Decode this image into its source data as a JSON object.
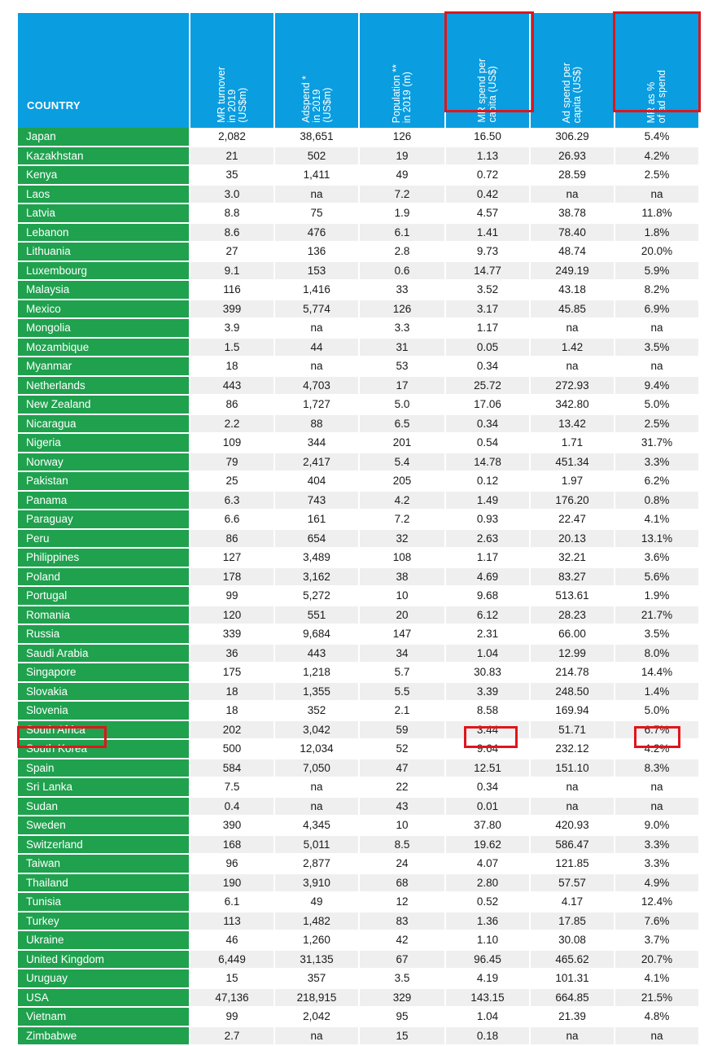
{
  "header": {
    "country": "COUNTRY",
    "columns": [
      "MR turnover\nin 2019\n(US$m)",
      "Adspend *\nin 2019\n(US$m)",
      "Population **\nin 2019 (m)",
      "MR spend per\ncapita (US$)",
      "Ad spend per\ncapita (US$)",
      "MR as %\nof ad spend"
    ]
  },
  "rows": [
    [
      "Japan",
      "2,082",
      "38,651",
      "126",
      "16.50",
      "306.29",
      "5.4%"
    ],
    [
      "Kazakhstan",
      "21",
      "502",
      "19",
      "1.13",
      "26.93",
      "4.2%"
    ],
    [
      "Kenya",
      "35",
      "1,411",
      "49",
      "0.72",
      "28.59",
      "2.5%"
    ],
    [
      "Laos",
      "3.0",
      "na",
      "7.2",
      "0.42",
      "na",
      "na"
    ],
    [
      "Latvia",
      "8.8",
      "75",
      "1.9",
      "4.57",
      "38.78",
      "11.8%"
    ],
    [
      "Lebanon",
      "8.6",
      "476",
      "6.1",
      "1.41",
      "78.40",
      "1.8%"
    ],
    [
      "Lithuania",
      "27",
      "136",
      "2.8",
      "9.73",
      "48.74",
      "20.0%"
    ],
    [
      "Luxembourg",
      "9.1",
      "153",
      "0.6",
      "14.77",
      "249.19",
      "5.9%"
    ],
    [
      "Malaysia",
      "116",
      "1,416",
      "33",
      "3.52",
      "43.18",
      "8.2%"
    ],
    [
      "Mexico",
      "399",
      "5,774",
      "126",
      "3.17",
      "45.85",
      "6.9%"
    ],
    [
      "Mongolia",
      "3.9",
      "na",
      "3.3",
      "1.17",
      "na",
      "na"
    ],
    [
      "Mozambique",
      "1.5",
      "44",
      "31",
      "0.05",
      "1.42",
      "3.5%"
    ],
    [
      "Myanmar",
      "18",
      "na",
      "53",
      "0.34",
      "na",
      "na"
    ],
    [
      "Netherlands",
      "443",
      "4,703",
      "17",
      "25.72",
      "272.93",
      "9.4%"
    ],
    [
      "New Zealand",
      "86",
      "1,727",
      "5.0",
      "17.06",
      "342.80",
      "5.0%"
    ],
    [
      "Nicaragua",
      "2.2",
      "88",
      "6.5",
      "0.34",
      "13.42",
      "2.5%"
    ],
    [
      "Nigeria",
      "109",
      "344",
      "201",
      "0.54",
      "1.71",
      "31.7%"
    ],
    [
      "Norway",
      "79",
      "2,417",
      "5.4",
      "14.78",
      "451.34",
      "3.3%"
    ],
    [
      "Pakistan",
      "25",
      "404",
      "205",
      "0.12",
      "1.97",
      "6.2%"
    ],
    [
      "Panama",
      "6.3",
      "743",
      "4.2",
      "1.49",
      "176.20",
      "0.8%"
    ],
    [
      "Paraguay",
      "6.6",
      "161",
      "7.2",
      "0.93",
      "22.47",
      "4.1%"
    ],
    [
      "Peru",
      "86",
      "654",
      "32",
      "2.63",
      "20.13",
      "13.1%"
    ],
    [
      "Philippines",
      "127",
      "3,489",
      "108",
      "1.17",
      "32.21",
      "3.6%"
    ],
    [
      "Poland",
      "178",
      "3,162",
      "38",
      "4.69",
      "83.27",
      "5.6%"
    ],
    [
      "Portugal",
      "99",
      "5,272",
      "10",
      "9.68",
      "513.61",
      "1.9%"
    ],
    [
      "Romania",
      "120",
      "551",
      "20",
      "6.12",
      "28.23",
      "21.7%"
    ],
    [
      "Russia",
      "339",
      "9,684",
      "147",
      "2.31",
      "66.00",
      "3.5%"
    ],
    [
      "Saudi Arabia",
      "36",
      "443",
      "34",
      "1.04",
      "12.99",
      "8.0%"
    ],
    [
      "Singapore",
      "175",
      "1,218",
      "5.7",
      "30.83",
      "214.78",
      "14.4%"
    ],
    [
      "Slovakia",
      "18",
      "1,355",
      "5.5",
      "3.39",
      "248.50",
      "1.4%"
    ],
    [
      "Slovenia",
      "18",
      "352",
      "2.1",
      "8.58",
      "169.94",
      "5.0%"
    ],
    [
      "South Africa",
      "202",
      "3,042",
      "59",
      "3.44",
      "51.71",
      "6.7%"
    ],
    [
      "South Korea",
      "500",
      "12,034",
      "52",
      "9.64",
      "232.12",
      "4.2%"
    ],
    [
      "Spain",
      "584",
      "7,050",
      "47",
      "12.51",
      "151.10",
      "8.3%"
    ],
    [
      "Sri Lanka",
      "7.5",
      "na",
      "22",
      "0.34",
      "na",
      "na"
    ],
    [
      "Sudan",
      "0.4",
      "na",
      "43",
      "0.01",
      "na",
      "na"
    ],
    [
      "Sweden",
      "390",
      "4,345",
      "10",
      "37.80",
      "420.93",
      "9.0%"
    ],
    [
      "Switzerland",
      "168",
      "5,011",
      "8.5",
      "19.62",
      "586.47",
      "3.3%"
    ],
    [
      "Taiwan",
      "96",
      "2,877",
      "24",
      "4.07",
      "121.85",
      "3.3%"
    ],
    [
      "Thailand",
      "190",
      "3,910",
      "68",
      "2.80",
      "57.57",
      "4.9%"
    ],
    [
      "Tunisia",
      "6.1",
      "49",
      "12",
      "0.52",
      "4.17",
      "12.4%"
    ],
    [
      "Turkey",
      "113",
      "1,482",
      "83",
      "1.36",
      "17.85",
      "7.6%"
    ],
    [
      "Ukraine",
      "46",
      "1,260",
      "42",
      "1.10",
      "30.08",
      "3.7%"
    ],
    [
      "United Kingdom",
      "6,449",
      "31,135",
      "67",
      "96.45",
      "465.62",
      "20.7%"
    ],
    [
      "Uruguay",
      "15",
      "357",
      "3.5",
      "4.19",
      "101.31",
      "4.1%"
    ],
    [
      "USA",
      "47,136",
      "218,915",
      "329",
      "143.15",
      "664.85",
      "21.5%"
    ],
    [
      "Vietnam",
      "99",
      "2,042",
      "95",
      "1.04",
      "21.39",
      "4.8%"
    ],
    [
      "Zimbabwe",
      "2.7",
      "na",
      "15",
      "0.18",
      "na",
      "na"
    ]
  ],
  "colors": {
    "header_bg": "#0a9de0",
    "country_bg": "#1fa14e",
    "alt_row_bg": "#efefef",
    "highlight": "#e0151b"
  }
}
